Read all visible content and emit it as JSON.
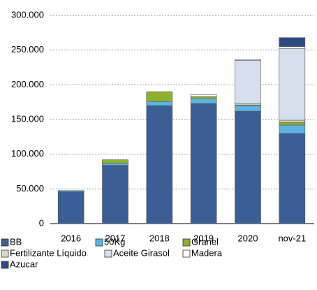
{
  "chart_data": {
    "type": "stacked_bar",
    "categories": [
      "2016",
      "2017",
      "2018",
      "2019",
      "2020",
      "nov-21"
    ],
    "series": [
      {
        "name": "BB",
        "color": "#3b5f95",
        "values": [
          46000,
          84000,
          170000,
          173000,
          162000,
          130000
        ]
      },
      {
        "name": "50Kg",
        "color": "#5cb4e4",
        "values": [
          1500,
          3000,
          6000,
          7000,
          8000,
          12000
        ]
      },
      {
        "name": "Granel",
        "color": "#8db22a",
        "values": [
          0,
          5000,
          14000,
          3000,
          1000,
          4000
        ]
      },
      {
        "name": "Fertilizante Líquido",
        "color": "#ddd9c3",
        "values": [
          0,
          0,
          0,
          0,
          2000,
          3000
        ]
      },
      {
        "name": "Aceite Girasol",
        "color": "#d5dfee",
        "values": [
          0,
          0,
          0,
          0,
          62000,
          103000
        ]
      },
      {
        "name": "Madera",
        "color": "#ffffff",
        "values": [
          0,
          0,
          0,
          3000,
          1000,
          3000
        ]
      },
      {
        "name": "Azucar",
        "color": "#2e4a82",
        "values": [
          0,
          0,
          0,
          0,
          0,
          13000
        ]
      }
    ],
    "ylim": [
      0,
      300000
    ],
    "yticks": [
      0,
      {
        "value": 50000,
        "label": "50.000"
      },
      {
        "value": 100000,
        "label": "100.000"
      },
      {
        "value": 150000,
        "label": "150.000"
      },
      {
        "value": 200000,
        "label": "200.000"
      },
      {
        "value": 250000,
        "label": "250.000"
      },
      {
        "value": 300000,
        "label": "300.000"
      }
    ],
    "grid": true
  }
}
